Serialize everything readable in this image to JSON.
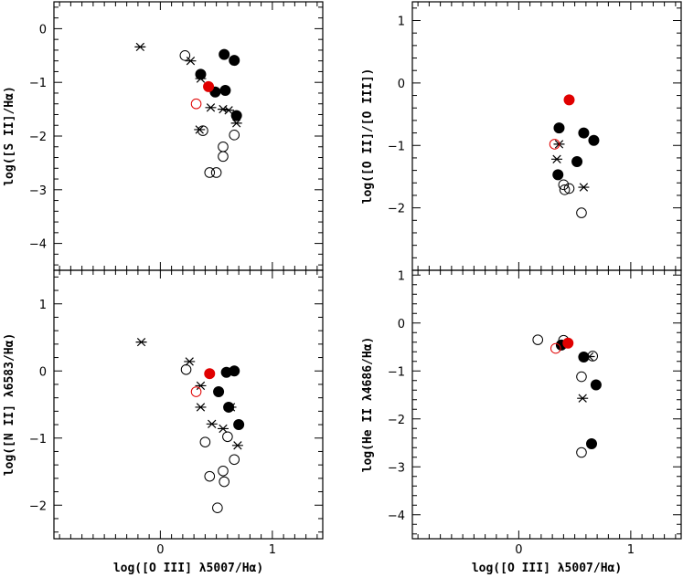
{
  "colors": {
    "axis": "#000000",
    "open": "#000000",
    "filled": "#000000",
    "highlight": "#e00000"
  },
  "chart_data": [
    {
      "id": "top-left",
      "type": "scatter",
      "xlabel": "",
      "ylabel": "log([S II]/Hα)",
      "xlim": [
        -0.95,
        1.45
      ],
      "ylim": [
        -4.5,
        0.5
      ],
      "yticks": [
        0,
        -1,
        -2,
        -3,
        -4
      ],
      "ytick_labels": [
        "0",
        "−1",
        "−2",
        "−3",
        "−4"
      ],
      "xticks": [],
      "xtick_labels": [],
      "series": [
        {
          "name": "filled",
          "marker": "filled-circle",
          "points": [
            [
              0.36,
              -0.85
            ],
            [
              0.57,
              -0.48
            ],
            [
              0.66,
              -0.59
            ],
            [
              0.49,
              -1.18
            ],
            [
              0.58,
              -1.15
            ],
            [
              0.68,
              -1.62
            ]
          ]
        },
        {
          "name": "open",
          "marker": "open-circle",
          "points": [
            [
              0.22,
              -0.5
            ],
            [
              0.38,
              -1.9
            ],
            [
              0.56,
              -2.2
            ],
            [
              0.56,
              -2.38
            ],
            [
              0.66,
              -1.98
            ],
            [
              0.44,
              -2.68
            ],
            [
              0.5,
              -2.68
            ]
          ]
        },
        {
          "name": "star",
          "marker": "asterisk",
          "points": [
            [
              -0.18,
              -0.34
            ],
            [
              0.27,
              -0.6
            ],
            [
              0.36,
              -0.93
            ],
            [
              0.45,
              -1.47
            ],
            [
              0.56,
              -1.5
            ],
            [
              0.61,
              -1.52
            ],
            [
              0.68,
              -1.76
            ],
            [
              0.35,
              -1.88
            ]
          ]
        },
        {
          "name": "red-filled",
          "marker": "red-filled-circle",
          "points": [
            [
              0.43,
              -1.08
            ]
          ]
        },
        {
          "name": "red-open",
          "marker": "red-open-circle",
          "points": [
            [
              0.32,
              -1.4
            ]
          ]
        }
      ]
    },
    {
      "id": "top-right",
      "type": "scatter",
      "xlabel": "",
      "ylabel": "log([O II]/[O III])",
      "xlim": [
        -0.95,
        1.45
      ],
      "ylim": [
        -3.0,
        1.3
      ],
      "yticks": [
        1,
        0,
        -1,
        -2
      ],
      "ytick_labels": [
        "1",
        "0",
        "−1",
        "−2"
      ],
      "xticks": [],
      "xtick_labels": [],
      "series": [
        {
          "name": "filled",
          "marker": "filled-circle",
          "points": [
            [
              0.36,
              -0.72
            ],
            [
              0.58,
              -0.8
            ],
            [
              0.67,
              -0.92
            ],
            [
              0.52,
              -1.26
            ],
            [
              0.35,
              -1.47
            ]
          ]
        },
        {
          "name": "open",
          "marker": "open-circle",
          "points": [
            [
              0.4,
              -1.63
            ],
            [
              0.41,
              -1.71
            ],
            [
              0.45,
              -1.69
            ],
            [
              0.56,
              -2.08
            ]
          ]
        },
        {
          "name": "star",
          "marker": "asterisk",
          "points": [
            [
              0.36,
              -0.98
            ],
            [
              0.34,
              -1.22
            ],
            [
              0.58,
              -1.67
            ]
          ]
        },
        {
          "name": "red-filled",
          "marker": "red-filled-circle",
          "points": [
            [
              0.45,
              -0.27
            ]
          ]
        },
        {
          "name": "red-open",
          "marker": "red-open-circle",
          "points": [
            [
              0.32,
              -0.98
            ]
          ]
        }
      ]
    },
    {
      "id": "bottom-left",
      "type": "scatter",
      "xlabel": "log([O III] λ5007/Hα)",
      "ylabel": "log([N II] λ6583/Hα)",
      "xlim": [
        -0.95,
        1.45
      ],
      "ylim": [
        -2.5,
        1.5
      ],
      "yticks": [
        1,
        0,
        -1,
        -2
      ],
      "ytick_labels": [
        "1",
        "0",
        "−1",
        "−2"
      ],
      "xticks": [
        0,
        1
      ],
      "xtick_labels": [
        "0",
        "1"
      ],
      "series": [
        {
          "name": "filled",
          "marker": "filled-circle",
          "points": [
            [
              0.59,
              -0.02
            ],
            [
              0.66,
              0.0
            ],
            [
              0.52,
              -0.31
            ],
            [
              0.61,
              -0.54
            ],
            [
              0.7,
              -0.8
            ]
          ]
        },
        {
          "name": "open",
          "marker": "open-circle",
          "points": [
            [
              0.23,
              0.02
            ],
            [
              0.4,
              -1.06
            ],
            [
              0.44,
              -1.57
            ],
            [
              0.56,
              -1.49
            ],
            [
              0.57,
              -1.65
            ],
            [
              0.66,
              -1.32
            ],
            [
              0.6,
              -0.98
            ],
            [
              0.51,
              -2.04
            ]
          ]
        },
        {
          "name": "star",
          "marker": "asterisk",
          "points": [
            [
              -0.17,
              0.43
            ],
            [
              0.26,
              0.14
            ],
            [
              0.36,
              -0.22
            ],
            [
              0.36,
              -0.54
            ],
            [
              0.46,
              -0.79
            ],
            [
              0.56,
              -0.86
            ],
            [
              0.63,
              -0.54
            ],
            [
              0.69,
              -1.11
            ]
          ]
        },
        {
          "name": "red-filled",
          "marker": "red-filled-circle",
          "points": [
            [
              0.44,
              -0.04
            ]
          ]
        },
        {
          "name": "red-open",
          "marker": "red-open-circle",
          "points": [
            [
              0.32,
              -0.31
            ]
          ]
        }
      ]
    },
    {
      "id": "bottom-right",
      "type": "scatter",
      "xlabel": "log([O III] λ5007/Hα)",
      "ylabel": "log(He II λ4686/Hα)",
      "xlim": [
        -0.95,
        1.45
      ],
      "ylim": [
        -4.5,
        1.1
      ],
      "yticks": [
        1,
        0,
        -1,
        -2,
        -3,
        -4
      ],
      "ytick_labels": [
        "1",
        "0",
        "−1",
        "−2",
        "−3",
        "−4"
      ],
      "xticks": [
        0,
        1
      ],
      "xtick_labels": [
        "0",
        "1"
      ],
      "series": [
        {
          "name": "filled",
          "marker": "filled-circle",
          "points": [
            [
              0.38,
              -0.46
            ],
            [
              0.58,
              -0.71
            ],
            [
              0.69,
              -1.29
            ],
            [
              0.65,
              -2.52
            ]
          ]
        },
        {
          "name": "open",
          "marker": "open-circle",
          "points": [
            [
              0.17,
              -0.35
            ],
            [
              0.4,
              -0.36
            ],
            [
              0.56,
              -1.12
            ],
            [
              0.66,
              -0.69
            ],
            [
              0.56,
              -2.7
            ]
          ]
        },
        {
          "name": "star",
          "marker": "asterisk",
          "points": [
            [
              0.63,
              -0.7
            ],
            [
              0.57,
              -1.57
            ]
          ]
        },
        {
          "name": "red-filled",
          "marker": "red-filled-circle",
          "points": [
            [
              0.44,
              -0.42
            ]
          ]
        },
        {
          "name": "red-open",
          "marker": "red-open-circle",
          "points": [
            [
              0.33,
              -0.53
            ]
          ]
        }
      ]
    }
  ]
}
